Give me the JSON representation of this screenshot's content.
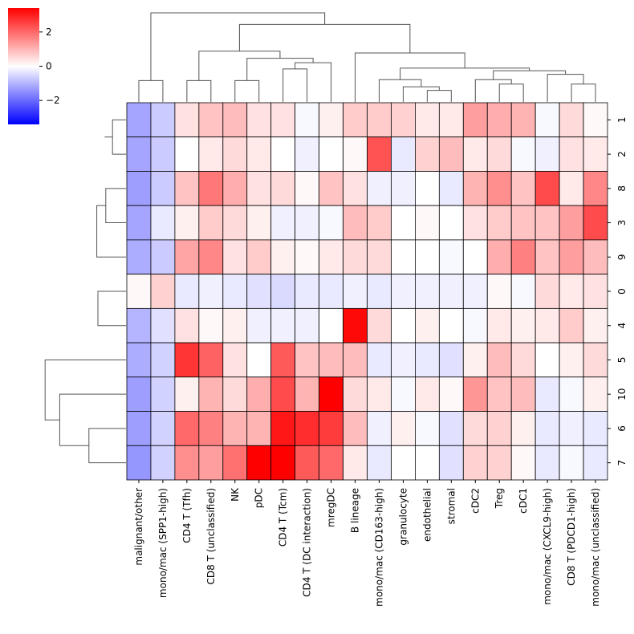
{
  "chart_data": {
    "type": "heatmap",
    "title": "",
    "rows": [
      "1",
      "2",
      "8",
      "3",
      "9",
      "0",
      "4",
      "5",
      "10",
      "6",
      "7"
    ],
    "columns": [
      "malignant/other",
      "mono/mac (SPP1-high)",
      "CD4 T (Tfh)",
      "CD8 T (unclassified)",
      "NK",
      "pDC",
      "CD4 T (Tcm)",
      "CD4 T (DC interaction)",
      "mregDC",
      "B lineage",
      "mono/mac (CD163-high)",
      "granulocyte",
      "endothelial",
      "stromal",
      "cDC2",
      "Treg",
      "cDC1",
      "mono/mac (CXCL9-high)",
      "CD8 T (PDCD1-high)",
      "mono/mac (unclassified)"
    ],
    "values": [
      [
        -1.2,
        -0.7,
        0.4,
        0.8,
        0.9,
        0.4,
        0.4,
        -0.1,
        0.2,
        0.7,
        0.7,
        0.6,
        0.3,
        0.3,
        1.3,
        1.1,
        1.0,
        -0.1,
        0.5,
        0.1
      ],
      [
        -1.2,
        -0.7,
        0.0,
        0.3,
        0.5,
        0.3,
        0.0,
        -0.2,
        0.0,
        0.1,
        2.3,
        -0.3,
        0.6,
        0.9,
        0.3,
        0.5,
        -0.1,
        -0.2,
        0.4,
        0.3
      ],
      [
        -1.3,
        -0.7,
        0.8,
        1.8,
        1.1,
        0.4,
        0.5,
        0.1,
        0.8,
        0.4,
        -0.2,
        -0.2,
        0.0,
        -0.3,
        1.0,
        1.5,
        0.8,
        2.4,
        0.3,
        1.6
      ],
      [
        -1.2,
        -0.3,
        0.2,
        0.7,
        0.5,
        0.2,
        -0.2,
        -0.2,
        -0.1,
        0.9,
        0.7,
        0.0,
        0.1,
        0.0,
        0.4,
        0.7,
        0.8,
        0.8,
        1.3,
        2.4
      ],
      [
        -1.1,
        -0.7,
        1.2,
        1.6,
        0.4,
        0.7,
        0.2,
        0.1,
        0.3,
        0.5,
        0.5,
        0.0,
        0.0,
        -0.1,
        0.0,
        1.1,
        1.7,
        0.8,
        1.3,
        0.9
      ],
      [
        0.1,
        0.6,
        -0.3,
        -0.2,
        -0.3,
        -0.4,
        -0.5,
        -0.3,
        -0.3,
        -0.2,
        -0.3,
        -0.2,
        -0.2,
        -0.2,
        -0.2,
        0.1,
        -0.1,
        0.5,
        0.3,
        0.4
      ],
      [
        -1.0,
        -0.4,
        0.4,
        0.1,
        0.2,
        -0.2,
        -0.2,
        -0.2,
        0.0,
        3.3,
        0.5,
        0.0,
        0.2,
        0.0,
        -0.1,
        0.3,
        0.2,
        0.3,
        0.7,
        0.2
      ],
      [
        -1.1,
        -0.6,
        2.7,
        2.1,
        0.4,
        0.0,
        2.2,
        0.8,
        0.9,
        0.9,
        -0.3,
        -0.2,
        -0.3,
        -0.4,
        0.2,
        0.9,
        0.5,
        0.0,
        0.2,
        0.5
      ],
      [
        -1.3,
        -0.6,
        0.2,
        1.0,
        0.5,
        1.1,
        2.4,
        1.0,
        3.4,
        0.5,
        0.3,
        -0.1,
        0.3,
        0.1,
        1.4,
        0.8,
        0.9,
        -0.3,
        -0.1,
        0.2
      ],
      [
        -1.3,
        -0.6,
        2.0,
        1.7,
        1.0,
        1.0,
        3.1,
        2.8,
        2.6,
        0.9,
        -0.2,
        0.2,
        -0.1,
        -0.4,
        0.5,
        0.6,
        0.2,
        -0.3,
        -0.2,
        -0.3
      ],
      [
        -1.4,
        -0.6,
        1.5,
        1.3,
        1.9,
        3.4,
        3.4,
        2.2,
        2.0,
        0.3,
        -0.3,
        0.0,
        0.0,
        -0.4,
        0.6,
        0.6,
        0.1,
        -0.3,
        -0.1,
        -0.3
      ]
    ],
    "vmin": -3.4,
    "vmax": 3.4,
    "colormap": "bwr",
    "colorbar": {
      "ticks": [
        2,
        0,
        -2
      ],
      "tick_labels": [
        "2",
        "0",
        "−2"
      ]
    },
    "colors": {
      "low": "#0000ff",
      "mid": "#ffffff",
      "high": "#ff0000",
      "grid": "#000000",
      "dendrogram": "#555555"
    },
    "row_dendrogram": [
      [
        "1",
        "2",
        0.12
      ],
      [
        "8",
        "3",
        0.18
      ],
      [
        "9",
        "8|3",
        0.26
      ],
      [
        "1|2",
        "8|3|9",
        0.19
      ],
      [
        "0",
        "4",
        0.25
      ],
      [
        "1|2|8|3|9",
        "0|4",
        0.74
      ],
      [
        "6",
        "7",
        0.33
      ],
      [
        "10",
        "6|7",
        0.59
      ],
      [
        "5",
        "10|6|7",
        0.72
      ],
      [
        "1|2|8|3|9|0|4",
        "5|10|6|7",
        1.0
      ]
    ],
    "col_dendrogram": [
      [
        "malignant/other",
        "mono/mac (SPP1-high)",
        0.24
      ],
      [
        "CD4 T (Tfh)",
        "CD8 T (unclassified)",
        0.24
      ],
      [
        "NK",
        "pDC",
        0.24
      ],
      [
        "CD4 T (Tcm)",
        "CD4 T (DC interaction)",
        0.37
      ],
      [
        "CD4 T (Tcm)|CD4 T (DC interaction)",
        "mregDC",
        0.44
      ],
      [
        "NK|pDC",
        "CD4 T (Tcm)|CD4 T (DC interaction)|mregDC",
        0.49
      ],
      [
        "CD4 T (Tfh)|CD8 T (unclassified)",
        "NK|pDC|CD4 T (Tcm)|CD4 T (DC interaction)|mregDC",
        0.57
      ],
      [
        "endothelial",
        "stromal",
        0.13
      ],
      [
        "granulocyte",
        "endothelial|stromal",
        0.17
      ],
      [
        "mono/mac (CD163-high)",
        "granulocyte|endothelial|stromal",
        0.25
      ],
      [
        "Treg",
        "cDC1",
        0.2
      ],
      [
        "cDC2",
        "Treg|cDC1",
        0.25
      ],
      [
        "CD8 T (PDCD1-high)",
        "mono/mac (unclassified)",
        0.2
      ],
      [
        "mono/mac (CXCL9-high)",
        "CD8 T (PDCD1-high)|mono/mac (unclassified)",
        0.31
      ],
      [
        "cDC2|Treg|cDC1",
        "mono/mac (CXCL9-high)|CD8 T (PDCD1-high)|mono/mac (unclassified)",
        0.35
      ],
      [
        "mono/mac (CD163-high)|granulocyte|endothelial|stromal",
        "cDC2|Treg|cDC1|mono/mac (CXCL9-high)|CD8 T (PDCD1-high)|mono/mac (unclassified)",
        0.38
      ],
      [
        "B lineage",
        "mono/mac (CD163-high)|granulocyte|endothelial|stromal|cDC2|Treg|cDC1|mono/mac (CXCL9-high)|CD8 T (PDCD1-high)|mono/mac (unclassified)",
        0.55
      ],
      [
        "CD4 T (Tfh)|CD8 T (unclassified)|NK|pDC|CD4 T (Tcm)|CD4 T (DC interaction)|mregDC",
        "B lineage|mono/mac (CD163-high)|granulocyte|endothelial|stromal|cDC2|Treg|cDC1|mono/mac (CXCL9-high)|CD8 T (PDCD1-high)|mono/mac (unclassified)",
        0.87
      ],
      [
        "malignant/other|mono/mac (SPP1-high)",
        "CD4 T (Tfh)|CD8 T (unclassified)|NK|pDC|CD4 T (Tcm)|CD4 T (DC interaction)|mregDC|B lineage|mono/mac (CD163-high)|granulocyte|endothelial|stromal|cDC2|Treg|cDC1|mono/mac (CXCL9-high)|CD8 T (PDCD1-high)|mono/mac (unclassified)",
        1.0
      ]
    ]
  }
}
